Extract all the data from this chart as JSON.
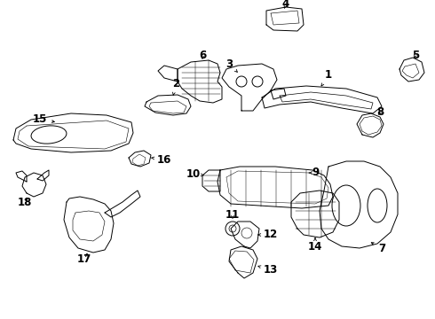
{
  "bg_color": "#ffffff",
  "line_color": "#000000",
  "fig_width": 4.9,
  "fig_height": 3.6,
  "dpi": 100,
  "label_fontsize": 8.5,
  "lw": 0.7
}
